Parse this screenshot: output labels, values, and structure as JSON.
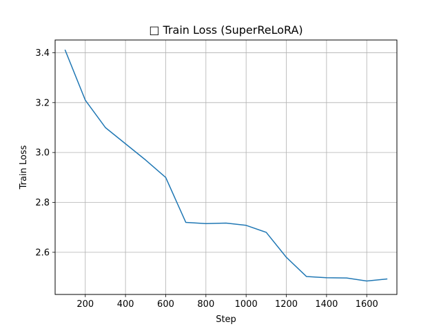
{
  "chart_data": {
    "type": "line",
    "title": "□ Train Loss (SuperReLoRA)",
    "xlabel": "Step",
    "ylabel": "Train Loss",
    "xlim": [
      50,
      1750
    ],
    "ylim": [
      2.431,
      3.451
    ],
    "xticks": [
      200,
      400,
      600,
      800,
      1000,
      1200,
      1400,
      1600
    ],
    "xtick_labels": [
      "200",
      "400",
      "600",
      "800",
      "1000",
      "1200",
      "1400",
      "1600"
    ],
    "yticks": [
      2.6,
      2.8,
      3.0,
      3.2,
      3.4
    ],
    "ytick_labels": [
      "2.6",
      "2.8",
      "3.0",
      "3.2",
      "3.4"
    ],
    "grid": true,
    "series": [
      {
        "x": [
          100,
          200,
          300,
          400,
          500,
          600,
          700,
          800,
          900,
          1000,
          1100,
          1200,
          1300,
          1400,
          1500,
          1600,
          1700
        ],
        "y": [
          3.41,
          3.21,
          3.1,
          3.035,
          2.97,
          2.9,
          2.72,
          2.715,
          2.717,
          2.708,
          2.68,
          2.58,
          2.503,
          2.498,
          2.497,
          2.485,
          2.493
        ],
        "color": "#1f77b4"
      }
    ]
  }
}
